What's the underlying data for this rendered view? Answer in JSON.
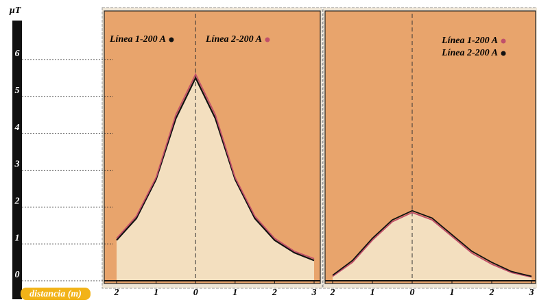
{
  "chart_data": {
    "type": "line",
    "ylabel": "µT",
    "xlabel": "distancia (m)",
    "ylim": [
      0,
      7
    ],
    "yticks": [
      0,
      1,
      2,
      3,
      4,
      5,
      6
    ],
    "xlim": [
      -2,
      3
    ],
    "xticks": [
      {
        "value": -2,
        "label": "2"
      },
      {
        "value": -1,
        "label": "1"
      },
      0,
      1,
      2,
      3
    ],
    "x": [
      -2,
      -1.5,
      -1,
      -0.5,
      0,
      0.5,
      1,
      1.5,
      2,
      2.5,
      3
    ],
    "panels": [
      {
        "legend": "top-left",
        "series": [
          {
            "name": "Línea 1-200 A",
            "color": "#111111",
            "values": [
              1.1,
              1.69,
              2.75,
              4.4,
              5.5,
              4.4,
              2.75,
              1.69,
              1.1,
              0.76,
              0.55
            ]
          },
          {
            "name": "Línea 2-200 A",
            "color": "#c0506a",
            "values": [
              1.15,
              1.75,
              2.8,
              4.5,
              5.6,
              4.5,
              2.8,
              1.75,
              1.15,
              0.8,
              0.6
            ]
          }
        ]
      },
      {
        "legend": "top-right",
        "series": [
          {
            "name": "Línea 1-200 A",
            "color": "#c0506a",
            "values": [
              0.12,
              0.5,
              1.1,
              1.6,
              1.85,
              1.65,
              1.2,
              0.75,
              0.45,
              0.22,
              0.1
            ]
          },
          {
            "name": "Línea 2-200 A",
            "color": "#111111",
            "values": [
              0.15,
              0.55,
              1.15,
              1.65,
              1.9,
              1.7,
              1.25,
              0.8,
              0.5,
              0.25,
              0.12
            ]
          }
        ]
      }
    ]
  }
}
